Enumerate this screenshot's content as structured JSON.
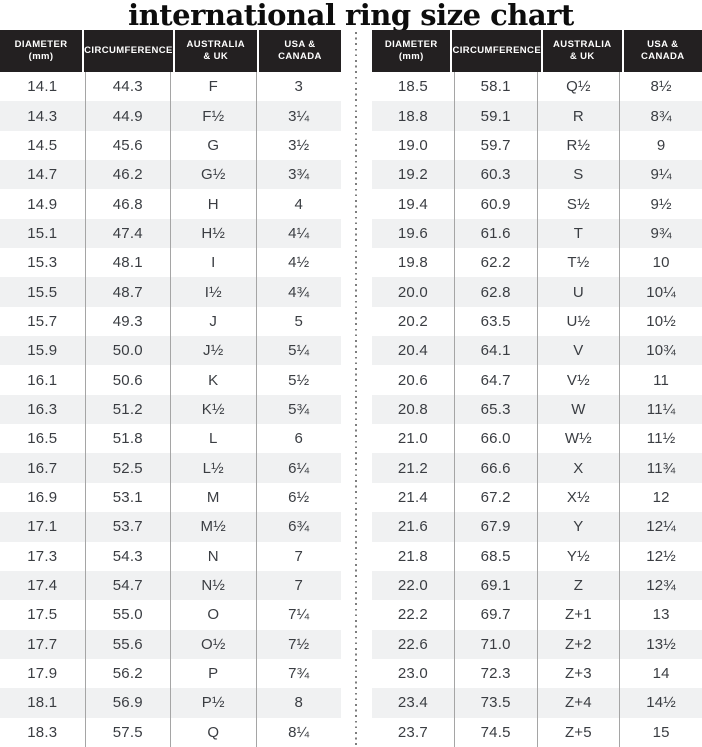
{
  "title": "international ring size chart",
  "columns_display": [
    "DIAMETER\n(mm)",
    "CIRCUMFERENCE",
    "AUSTRALIA\n& UK",
    "USA &\nCANADA"
  ],
  "colors": {
    "header_bg": "#232021",
    "header_text": "#ffffff",
    "row_stripe": "#f0f1f2",
    "body_text": "#3a3d42",
    "column_divider": "#a5a5a5",
    "dotted_divider": "#7d7d7d"
  },
  "chart_data": {
    "type": "table",
    "title": "international ring size chart",
    "columns": [
      "DIAMETER (mm)",
      "CIRCUMFERENCE",
      "AUSTRALIA & UK",
      "USA & CANADA"
    ],
    "tables": [
      {
        "name": "left",
        "rows": [
          [
            "14.1",
            "44.3",
            "F",
            "3"
          ],
          [
            "14.3",
            "44.9",
            "F½",
            "3¼"
          ],
          [
            "14.5",
            "45.6",
            "G",
            "3½"
          ],
          [
            "14.7",
            "46.2",
            "G½",
            "3¾"
          ],
          [
            "14.9",
            "46.8",
            "H",
            "4"
          ],
          [
            "15.1",
            "47.4",
            "H½",
            "4¼"
          ],
          [
            "15.3",
            "48.1",
            "I",
            "4½"
          ],
          [
            "15.5",
            "48.7",
            "I½",
            "4¾"
          ],
          [
            "15.7",
            "49.3",
            "J",
            "5"
          ],
          [
            "15.9",
            "50.0",
            "J½",
            "5¼"
          ],
          [
            "16.1",
            "50.6",
            "K",
            "5½"
          ],
          [
            "16.3",
            "51.2",
            "K½",
            "5¾"
          ],
          [
            "16.5",
            "51.8",
            "L",
            "6"
          ],
          [
            "16.7",
            "52.5",
            "L½",
            "6¼"
          ],
          [
            "16.9",
            "53.1",
            "M",
            "6½"
          ],
          [
            "17.1",
            "53.7",
            "M½",
            "6¾"
          ],
          [
            "17.3",
            "54.3",
            "N",
            "7"
          ],
          [
            "17.4",
            "54.7",
            "N½",
            "7"
          ],
          [
            "17.5",
            "55.0",
            "O",
            "7¼"
          ],
          [
            "17.7",
            "55.6",
            "O½",
            "7½"
          ],
          [
            "17.9",
            "56.2",
            "P",
            "7¾"
          ],
          [
            "18.1",
            "56.9",
            "P½",
            "8"
          ],
          [
            "18.3",
            "57.5",
            "Q",
            "8¼"
          ]
        ]
      },
      {
        "name": "right",
        "rows": [
          [
            "18.5",
            "58.1",
            "Q½",
            "8½"
          ],
          [
            "18.8",
            "59.1",
            "R",
            "8¾"
          ],
          [
            "19.0",
            "59.7",
            "R½",
            "9"
          ],
          [
            "19.2",
            "60.3",
            "S",
            "9¼"
          ],
          [
            "19.4",
            "60.9",
            "S½",
            "9½"
          ],
          [
            "19.6",
            "61.6",
            "T",
            "9¾"
          ],
          [
            "19.8",
            "62.2",
            "T½",
            "10"
          ],
          [
            "20.0",
            "62.8",
            "U",
            "10¼"
          ],
          [
            "20.2",
            "63.5",
            "U½",
            "10½"
          ],
          [
            "20.4",
            "64.1",
            "V",
            "10¾"
          ],
          [
            "20.6",
            "64.7",
            "V½",
            "11"
          ],
          [
            "20.8",
            "65.3",
            "W",
            "11¼"
          ],
          [
            "21.0",
            "66.0",
            "W½",
            "11½"
          ],
          [
            "21.2",
            "66.6",
            "X",
            "11¾"
          ],
          [
            "21.4",
            "67.2",
            "X½",
            "12"
          ],
          [
            "21.6",
            "67.9",
            "Y",
            "12¼"
          ],
          [
            "21.8",
            "68.5",
            "Y½",
            "12½"
          ],
          [
            "22.0",
            "69.1",
            "Z",
            "12¾"
          ],
          [
            "22.2",
            "69.7",
            "Z+1",
            "13"
          ],
          [
            "22.6",
            "71.0",
            "Z+2",
            "13½"
          ],
          [
            "23.0",
            "72.3",
            "Z+3",
            "14"
          ],
          [
            "23.4",
            "73.5",
            "Z+4",
            "14½"
          ],
          [
            "23.7",
            "74.5",
            "Z+5",
            "15"
          ]
        ]
      }
    ]
  }
}
